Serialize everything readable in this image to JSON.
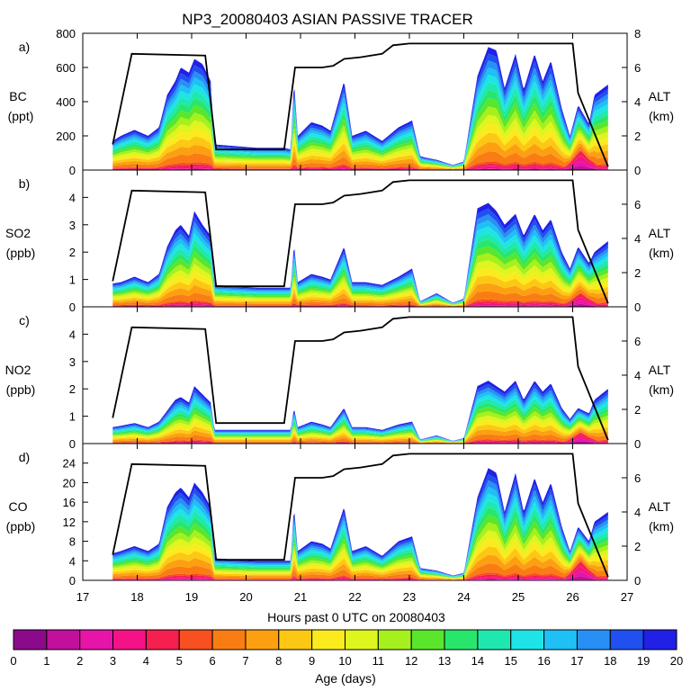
{
  "chart_data": {
    "type": "area",
    "title": "NP3_20080403 ASIAN PASSIVE TRACER",
    "xlabel": "Hours past 0 UTC on 20080403",
    "xlim": [
      17,
      27
    ],
    "xticks": [
      "17",
      "18",
      "19",
      "20",
      "21",
      "22",
      "23",
      "24",
      "25",
      "26",
      "27"
    ],
    "right_axis": {
      "label": "ALT",
      "units": "(km)",
      "ylim": [
        0,
        8
      ]
    },
    "panels": [
      {
        "letter": "a)",
        "species": "BC",
        "units": "(ppt)",
        "ylim": [
          0,
          800
        ],
        "yticks": [
          "0",
          "200",
          "400",
          "600",
          "800"
        ],
        "alt_ticks": [
          "0",
          "2",
          "4",
          "6",
          "8"
        ],
        "alt_max": 8,
        "total": [
          [
            17.55,
            170
          ],
          [
            17.7,
            200
          ],
          [
            17.95,
            235
          ],
          [
            18.2,
            200
          ],
          [
            18.4,
            250
          ],
          [
            18.55,
            440
          ],
          [
            18.7,
            520
          ],
          [
            18.8,
            600
          ],
          [
            18.95,
            570
          ],
          [
            19.05,
            650
          ],
          [
            19.2,
            620
          ],
          [
            19.35,
            520
          ],
          [
            19.42,
            150
          ],
          [
            20.2,
            130
          ],
          [
            20.7,
            130
          ],
          [
            20.82,
            120
          ],
          [
            20.88,
            520
          ],
          [
            20.95,
            200
          ],
          [
            21.2,
            280
          ],
          [
            21.4,
            260
          ],
          [
            21.55,
            230
          ],
          [
            21.8,
            520
          ],
          [
            21.95,
            200
          ],
          [
            22.2,
            230
          ],
          [
            22.5,
            170
          ],
          [
            22.8,
            250
          ],
          [
            23.05,
            290
          ],
          [
            23.2,
            80
          ],
          [
            23.5,
            60
          ],
          [
            23.8,
            30
          ],
          [
            24.0,
            50
          ],
          [
            24.25,
            550
          ],
          [
            24.45,
            720
          ],
          [
            24.6,
            700
          ],
          [
            24.75,
            480
          ],
          [
            24.95,
            680
          ],
          [
            25.1,
            470
          ],
          [
            25.3,
            680
          ],
          [
            25.45,
            520
          ],
          [
            25.6,
            640
          ],
          [
            25.8,
            360
          ],
          [
            25.95,
            200
          ],
          [
            26.1,
            380
          ],
          [
            26.3,
            270
          ],
          [
            26.4,
            440
          ],
          [
            26.65,
            500
          ]
        ],
        "magenta_peak": 100,
        "altitude": [
          [
            17.55,
            1.5
          ],
          [
            17.9,
            6.8
          ],
          [
            19.25,
            6.7
          ],
          [
            19.45,
            1.2
          ],
          [
            20.7,
            1.2
          ],
          [
            20.9,
            6.0
          ],
          [
            21.1,
            6.0
          ],
          [
            21.4,
            6.0
          ],
          [
            21.6,
            6.1
          ],
          [
            21.8,
            6.5
          ],
          [
            22.1,
            6.6
          ],
          [
            22.5,
            6.8
          ],
          [
            22.7,
            7.3
          ],
          [
            23.0,
            7.4
          ],
          [
            24.2,
            7.4
          ],
          [
            25.2,
            7.4
          ],
          [
            26.0,
            7.4
          ],
          [
            26.1,
            4.5
          ],
          [
            26.65,
            0.2
          ]
        ]
      },
      {
        "letter": "b)",
        "species": "SO2",
        "units": "(ppb)",
        "ylim": [
          0,
          5
        ],
        "yticks": [
          "0",
          "1",
          "2",
          "3",
          "4"
        ],
        "alt_ticks": [
          "0",
          "2",
          "4",
          "6"
        ],
        "alt_max": 8,
        "total": [
          [
            17.55,
            0.85
          ],
          [
            17.7,
            0.9
          ],
          [
            17.95,
            1.1
          ],
          [
            18.2,
            0.9
          ],
          [
            18.4,
            1.2
          ],
          [
            18.55,
            2.2
          ],
          [
            18.7,
            2.8
          ],
          [
            18.8,
            3.0
          ],
          [
            18.95,
            2.6
          ],
          [
            19.05,
            3.5
          ],
          [
            19.2,
            3.0
          ],
          [
            19.35,
            2.6
          ],
          [
            19.42,
            0.8
          ],
          [
            20.2,
            0.7
          ],
          [
            20.7,
            0.7
          ],
          [
            20.82,
            0.7
          ],
          [
            20.88,
            2.3
          ],
          [
            20.95,
            0.9
          ],
          [
            21.2,
            1.2
          ],
          [
            21.4,
            1.1
          ],
          [
            21.55,
            1.0
          ],
          [
            21.8,
            2.2
          ],
          [
            21.95,
            0.9
          ],
          [
            22.2,
            0.9
          ],
          [
            22.5,
            0.8
          ],
          [
            22.8,
            1.1
          ],
          [
            23.05,
            1.4
          ],
          [
            23.2,
            0.2
          ],
          [
            23.5,
            0.5
          ],
          [
            23.8,
            0.15
          ],
          [
            24.0,
            0.3
          ],
          [
            24.25,
            3.6
          ],
          [
            24.45,
            3.8
          ],
          [
            24.6,
            3.5
          ],
          [
            24.75,
            3.0
          ],
          [
            24.95,
            3.4
          ],
          [
            25.1,
            2.6
          ],
          [
            25.3,
            3.4
          ],
          [
            25.45,
            2.8
          ],
          [
            25.6,
            3.2
          ],
          [
            25.8,
            2.0
          ],
          [
            25.95,
            1.4
          ],
          [
            26.1,
            2.2
          ],
          [
            26.3,
            1.6
          ],
          [
            26.4,
            2.0
          ],
          [
            26.65,
            2.4
          ]
        ],
        "magenta_peak": 0.4,
        "altitude": [
          [
            17.55,
            1.5
          ],
          [
            17.9,
            6.8
          ],
          [
            19.25,
            6.7
          ],
          [
            19.45,
            1.2
          ],
          [
            20.7,
            1.2
          ],
          [
            20.9,
            6.0
          ],
          [
            21.1,
            6.0
          ],
          [
            21.4,
            6.0
          ],
          [
            21.6,
            6.1
          ],
          [
            21.8,
            6.5
          ],
          [
            22.1,
            6.6
          ],
          [
            22.5,
            6.8
          ],
          [
            22.7,
            7.3
          ],
          [
            23.0,
            7.4
          ],
          [
            24.2,
            7.4
          ],
          [
            25.2,
            7.4
          ],
          [
            26.0,
            7.4
          ],
          [
            26.1,
            4.5
          ],
          [
            26.65,
            0.2
          ]
        ]
      },
      {
        "letter": "c)",
        "species": "NO2",
        "units": "(ppb)",
        "ylim": [
          0,
          5
        ],
        "yticks": [
          "0",
          "1",
          "2",
          "3",
          "4"
        ],
        "alt_ticks": [
          "0",
          "2",
          "4",
          "6"
        ],
        "alt_max": 8,
        "total": [
          [
            17.55,
            0.6
          ],
          [
            17.7,
            0.65
          ],
          [
            17.95,
            0.75
          ],
          [
            18.2,
            0.6
          ],
          [
            18.4,
            0.8
          ],
          [
            18.55,
            1.2
          ],
          [
            18.7,
            1.6
          ],
          [
            18.8,
            1.7
          ],
          [
            18.95,
            1.5
          ],
          [
            19.05,
            2.1
          ],
          [
            19.2,
            1.8
          ],
          [
            19.35,
            1.5
          ],
          [
            19.42,
            0.5
          ],
          [
            20.2,
            0.5
          ],
          [
            20.7,
            0.5
          ],
          [
            20.82,
            0.5
          ],
          [
            20.88,
            1.3
          ],
          [
            20.95,
            0.6
          ],
          [
            21.2,
            0.8
          ],
          [
            21.4,
            0.7
          ],
          [
            21.55,
            0.6
          ],
          [
            21.8,
            1.3
          ],
          [
            21.95,
            0.6
          ],
          [
            22.2,
            0.6
          ],
          [
            22.5,
            0.5
          ],
          [
            22.8,
            0.7
          ],
          [
            23.05,
            0.8
          ],
          [
            23.2,
            0.15
          ],
          [
            23.5,
            0.3
          ],
          [
            23.8,
            0.1
          ],
          [
            24.0,
            0.2
          ],
          [
            24.25,
            2.1
          ],
          [
            24.45,
            2.3
          ],
          [
            24.6,
            2.1
          ],
          [
            24.75,
            1.9
          ],
          [
            24.95,
            2.3
          ],
          [
            25.1,
            1.6
          ],
          [
            25.3,
            2.3
          ],
          [
            25.45,
            1.9
          ],
          [
            25.6,
            2.2
          ],
          [
            25.8,
            1.3
          ],
          [
            25.95,
            0.9
          ],
          [
            26.1,
            1.3
          ],
          [
            26.3,
            1.1
          ],
          [
            26.4,
            1.6
          ],
          [
            26.65,
            2.0
          ]
        ],
        "magenta_peak": 0.35,
        "altitude": [
          [
            17.55,
            1.5
          ],
          [
            17.9,
            6.8
          ],
          [
            19.25,
            6.7
          ],
          [
            19.45,
            1.2
          ],
          [
            20.7,
            1.2
          ],
          [
            20.9,
            6.0
          ],
          [
            21.1,
            6.0
          ],
          [
            21.4,
            6.0
          ],
          [
            21.6,
            6.1
          ],
          [
            21.8,
            6.5
          ],
          [
            22.1,
            6.6
          ],
          [
            22.5,
            6.8
          ],
          [
            22.7,
            7.3
          ],
          [
            23.0,
            7.4
          ],
          [
            24.2,
            7.4
          ],
          [
            25.2,
            7.4
          ],
          [
            26.0,
            7.4
          ],
          [
            26.1,
            4.5
          ],
          [
            26.65,
            0.2
          ]
        ]
      },
      {
        "letter": "d)",
        "species": "CO",
        "units": "(ppb)",
        "ylim": [
          0,
          28
        ],
        "yticks": [
          "0",
          "4",
          "8",
          "12",
          "16",
          "20",
          "24"
        ],
        "alt_ticks": [
          "0",
          "2",
          "4",
          "6"
        ],
        "alt_max": 8,
        "total": [
          [
            17.55,
            5.5
          ],
          [
            17.7,
            6.0
          ],
          [
            17.95,
            7.0
          ],
          [
            18.2,
            6.0
          ],
          [
            18.4,
            7.5
          ],
          [
            18.55,
            15.0
          ],
          [
            18.7,
            18.0
          ],
          [
            18.8,
            19.0
          ],
          [
            18.95,
            17.0
          ],
          [
            19.05,
            20.0
          ],
          [
            19.2,
            18.0
          ],
          [
            19.35,
            15.0
          ],
          [
            19.42,
            4.5
          ],
          [
            20.2,
            4.0
          ],
          [
            20.7,
            4.0
          ],
          [
            20.82,
            4.0
          ],
          [
            20.88,
            15.0
          ],
          [
            20.95,
            6.0
          ],
          [
            21.2,
            8.0
          ],
          [
            21.4,
            7.5
          ],
          [
            21.55,
            6.5
          ],
          [
            21.8,
            15.0
          ],
          [
            21.95,
            6.0
          ],
          [
            22.2,
            7.0
          ],
          [
            22.5,
            5.0
          ],
          [
            22.8,
            8.0
          ],
          [
            23.05,
            9.0
          ],
          [
            23.2,
            2.5
          ],
          [
            23.5,
            2.0
          ],
          [
            23.8,
            1.0
          ],
          [
            24.0,
            1.5
          ],
          [
            24.25,
            17.0
          ],
          [
            24.45,
            23.0
          ],
          [
            24.6,
            22.0
          ],
          [
            24.75,
            14.0
          ],
          [
            24.95,
            22.0
          ],
          [
            25.1,
            14.0
          ],
          [
            25.3,
            21.0
          ],
          [
            25.45,
            16.0
          ],
          [
            25.6,
            20.0
          ],
          [
            25.8,
            11.0
          ],
          [
            25.95,
            6.0
          ],
          [
            26.1,
            11.0
          ],
          [
            26.3,
            8.0
          ],
          [
            26.4,
            12.0
          ],
          [
            26.65,
            14.0
          ]
        ],
        "magenta_peak": 3.5,
        "altitude": [
          [
            17.55,
            1.5
          ],
          [
            17.9,
            6.8
          ],
          [
            19.25,
            6.7
          ],
          [
            19.45,
            1.2
          ],
          [
            20.7,
            1.2
          ],
          [
            20.9,
            6.0
          ],
          [
            21.1,
            6.0
          ],
          [
            21.4,
            6.0
          ],
          [
            21.6,
            6.1
          ],
          [
            21.8,
            6.5
          ],
          [
            22.1,
            6.6
          ],
          [
            22.5,
            6.8
          ],
          [
            22.7,
            7.3
          ],
          [
            23.0,
            7.4
          ],
          [
            24.2,
            7.4
          ],
          [
            25.2,
            7.4
          ],
          [
            26.0,
            7.4
          ],
          [
            26.1,
            4.5
          ],
          [
            26.65,
            0.2
          ]
        ]
      }
    ],
    "colorbar": {
      "label": "Age (days)",
      "tick_labels": [
        "0",
        "1",
        "2",
        "3",
        "4",
        "5",
        "6",
        "7",
        "8",
        "9",
        "10",
        "11",
        "12",
        "13",
        "14",
        "15",
        "16",
        "17",
        "18",
        "19",
        "20"
      ],
      "colors": [
        "#8b0a8b",
        "#c0109c",
        "#e614a8",
        "#f51288",
        "#f52050",
        "#f85020",
        "#fa7d14",
        "#fca012",
        "#fdc814",
        "#fbeb1e",
        "#dff51e",
        "#a6f01e",
        "#5ae62a",
        "#28e66c",
        "#1ee8b0",
        "#1ee4e6",
        "#1ec0f5",
        "#2890f5",
        "#2050f0",
        "#2020e6"
      ]
    }
  }
}
